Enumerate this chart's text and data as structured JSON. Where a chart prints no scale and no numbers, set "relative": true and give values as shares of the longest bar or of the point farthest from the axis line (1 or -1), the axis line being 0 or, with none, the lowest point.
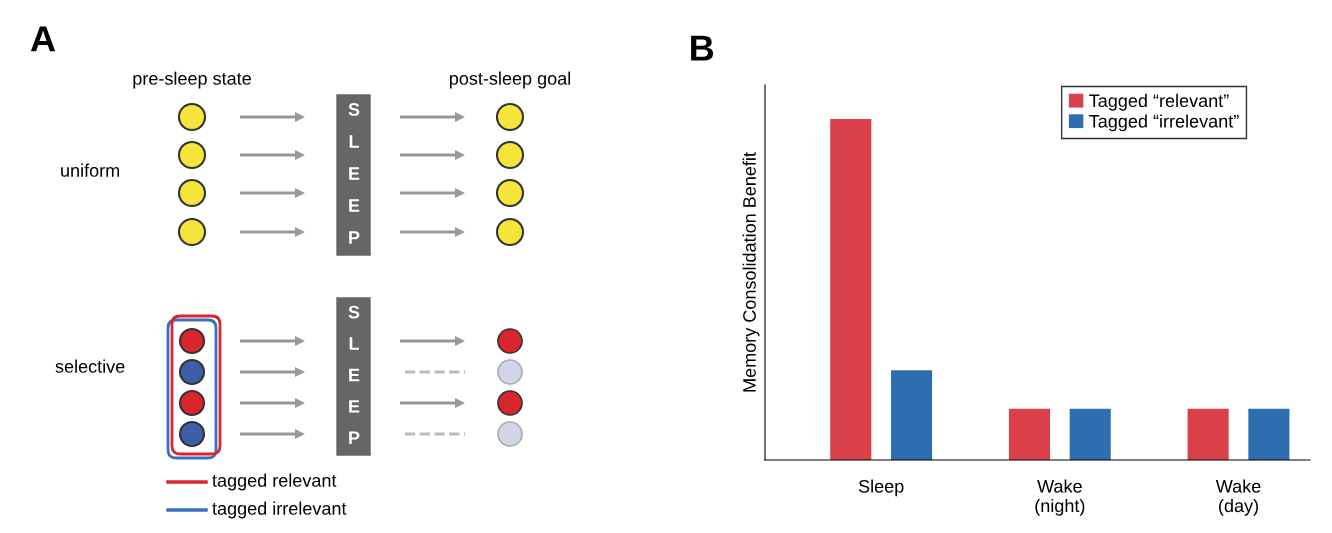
{
  "chart_data": [
    {
      "type": "other",
      "title": "A",
      "annotations": [
        "pre-sleep state",
        "post-sleep goal",
        "uniform",
        "selective",
        "SLEEP",
        "SLEEP",
        "tagged relevant",
        "tagged irrelevant"
      ]
    },
    {
      "type": "bar",
      "title": "B",
      "ylabel": "Memory Consolidation Benefit",
      "relative": true,
      "categories": [
        "Sleep",
        "Wake\n(night)",
        "Wake\n(day)"
      ],
      "series": [
        {
          "name": "Tagged “relevant”",
          "color": "#d9404a",
          "values": [
            1,
            0.15,
            0.15
          ]
        },
        {
          "name": "Tagged “irrelevant”",
          "color": "#2e6db0",
          "values": [
            0.263,
            0.15,
            0.15
          ]
        }
      ],
      "legend": "top right",
      "grid": false
    }
  ]
}
